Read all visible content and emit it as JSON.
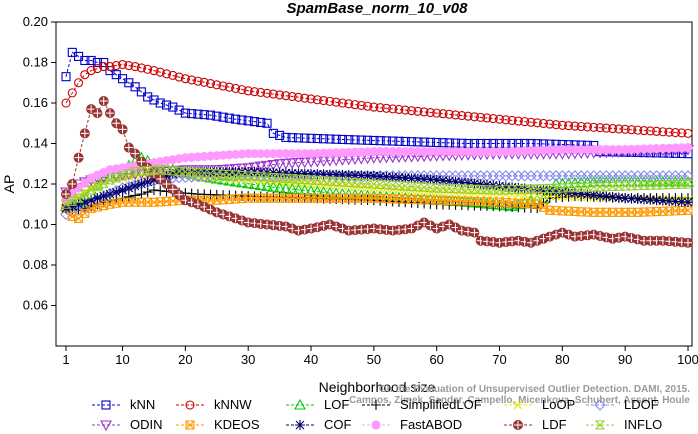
{
  "chart_data": {
    "type": "line",
    "title": "SpamBase_norm_10_v08",
    "xlabel": "Neighborhood size",
    "ylabel": "AP",
    "xlim": [
      1,
      100
    ],
    "ylim": [
      0.04,
      0.2
    ],
    "xticks": [
      1,
      10,
      20,
      30,
      40,
      50,
      60,
      70,
      80,
      90,
      100
    ],
    "yticks": [
      0.06,
      0.08,
      0.1,
      0.12,
      0.14,
      0.16,
      0.18,
      0.2
    ],
    "ytick_labels": [
      "0.06",
      "0.08",
      "0.10",
      "0.12",
      "0.14",
      "0.16",
      "0.18",
      "0.20"
    ],
    "grid": false,
    "legend_position": "bottom",
    "series": [
      {
        "name": "kNN",
        "color": "#0000cc",
        "marker": "square",
        "points": [
          [
            1,
            0.173
          ],
          [
            2,
            0.185
          ],
          [
            3,
            0.183
          ],
          [
            4,
            0.181
          ],
          [
            5,
            0.181
          ],
          [
            6,
            0.18
          ],
          [
            7,
            0.18
          ],
          [
            8,
            0.176
          ],
          [
            10,
            0.172
          ],
          [
            12,
            0.168
          ],
          [
            14,
            0.163
          ],
          [
            16,
            0.16
          ],
          [
            18,
            0.158
          ],
          [
            20,
            0.155
          ],
          [
            24,
            0.154
          ],
          [
            28,
            0.152
          ],
          [
            33,
            0.15
          ],
          [
            34,
            0.145
          ],
          [
            36,
            0.143
          ],
          [
            45,
            0.142
          ],
          [
            55,
            0.141
          ],
          [
            65,
            0.14
          ],
          [
            75,
            0.14
          ],
          [
            85,
            0.139
          ],
          [
            86,
            0.136
          ],
          [
            100,
            0.135
          ]
        ]
      },
      {
        "name": "kNNW",
        "color": "#cc0000",
        "marker": "circle",
        "points": [
          [
            1,
            0.16
          ],
          [
            2,
            0.165
          ],
          [
            3,
            0.17
          ],
          [
            4,
            0.174
          ],
          [
            5,
            0.176
          ],
          [
            6,
            0.177
          ],
          [
            7,
            0.178
          ],
          [
            8,
            0.178
          ],
          [
            10,
            0.179
          ],
          [
            12,
            0.178
          ],
          [
            15,
            0.176
          ],
          [
            20,
            0.172
          ],
          [
            25,
            0.169
          ],
          [
            30,
            0.166
          ],
          [
            35,
            0.164
          ],
          [
            40,
            0.162
          ],
          [
            50,
            0.158
          ],
          [
            60,
            0.155
          ],
          [
            70,
            0.152
          ],
          [
            80,
            0.149
          ],
          [
            90,
            0.147
          ],
          [
            100,
            0.145
          ]
        ]
      },
      {
        "name": "LOF",
        "color": "#00cc00",
        "marker": "triangle-up",
        "points": [
          [
            1,
            0.109
          ],
          [
            3,
            0.111
          ],
          [
            5,
            0.117
          ],
          [
            7,
            0.122
          ],
          [
            9,
            0.125
          ],
          [
            11,
            0.129
          ],
          [
            13,
            0.133
          ],
          [
            15,
            0.13
          ],
          [
            18,
            0.127
          ],
          [
            22,
            0.124
          ],
          [
            28,
            0.121
          ],
          [
            35,
            0.118
          ],
          [
            45,
            0.115
          ],
          [
            55,
            0.113
          ],
          [
            65,
            0.111
          ],
          [
            72,
            0.109
          ],
          [
            77,
            0.113
          ],
          [
            79,
            0.12
          ],
          [
            85,
            0.121
          ],
          [
            100,
            0.121
          ]
        ]
      },
      {
        "name": "SimplifiedLOF",
        "color": "#000000",
        "marker": "plus",
        "points": [
          [
            1,
            0.108
          ],
          [
            3,
            0.107
          ],
          [
            5,
            0.109
          ],
          [
            7,
            0.111
          ],
          [
            10,
            0.113
          ],
          [
            13,
            0.115
          ],
          [
            15,
            0.117
          ],
          [
            18,
            0.116
          ],
          [
            22,
            0.115
          ],
          [
            30,
            0.114
          ],
          [
            40,
            0.113
          ],
          [
            50,
            0.112
          ],
          [
            60,
            0.11
          ],
          [
            70,
            0.109
          ],
          [
            76,
            0.108
          ],
          [
            78,
            0.113
          ],
          [
            82,
            0.114
          ],
          [
            90,
            0.113
          ],
          [
            100,
            0.113
          ]
        ]
      },
      {
        "name": "LoOP",
        "color": "#e6e600",
        "marker": "x",
        "points": [
          [
            1,
            0.112
          ],
          [
            3,
            0.114
          ],
          [
            5,
            0.118
          ],
          [
            8,
            0.122
          ],
          [
            12,
            0.124
          ],
          [
            16,
            0.125
          ],
          [
            20,
            0.124
          ],
          [
            30,
            0.122
          ],
          [
            40,
            0.12
          ],
          [
            50,
            0.118
          ],
          [
            60,
            0.116
          ],
          [
            70,
            0.115
          ],
          [
            80,
            0.114
          ],
          [
            90,
            0.113
          ],
          [
            100,
            0.112
          ]
        ]
      },
      {
        "name": "LDOF",
        "color": "#8888ee",
        "marker": "diamond",
        "points": [
          [
            1,
            0.105
          ],
          [
            3,
            0.107
          ],
          [
            5,
            0.11
          ],
          [
            7,
            0.114
          ],
          [
            10,
            0.118
          ],
          [
            14,
            0.121
          ],
          [
            18,
            0.123
          ],
          [
            24,
            0.124
          ],
          [
            32,
            0.124
          ],
          [
            42,
            0.124
          ],
          [
            52,
            0.124
          ],
          [
            62,
            0.124
          ],
          [
            72,
            0.124
          ],
          [
            82,
            0.124
          ],
          [
            92,
            0.124
          ],
          [
            100,
            0.124
          ]
        ]
      },
      {
        "name": "ODIN",
        "color": "#9933cc",
        "marker": "triangle-down",
        "points": [
          [
            1,
            0.116
          ],
          [
            3,
            0.12
          ],
          [
            5,
            0.122
          ],
          [
            8,
            0.124
          ],
          [
            12,
            0.125
          ],
          [
            16,
            0.126
          ],
          [
            20,
            0.127
          ],
          [
            25,
            0.127
          ],
          [
            30,
            0.128
          ],
          [
            35,
            0.13
          ],
          [
            40,
            0.131
          ],
          [
            45,
            0.132
          ],
          [
            50,
            0.133
          ],
          [
            60,
            0.134
          ],
          [
            70,
            0.135
          ],
          [
            80,
            0.135
          ],
          [
            90,
            0.136
          ],
          [
            100,
            0.137
          ]
        ]
      },
      {
        "name": "KDEOS",
        "color": "#ff9900",
        "marker": "box-x",
        "points": [
          [
            1,
            0.108
          ],
          [
            2,
            0.104
          ],
          [
            3,
            0.103
          ],
          [
            5,
            0.108
          ],
          [
            8,
            0.11
          ],
          [
            10,
            0.111
          ],
          [
            15,
            0.111
          ],
          [
            20,
            0.112
          ],
          [
            25,
            0.112
          ],
          [
            30,
            0.113
          ],
          [
            40,
            0.113
          ],
          [
            50,
            0.113
          ],
          [
            60,
            0.112
          ],
          [
            70,
            0.111
          ],
          [
            76,
            0.11
          ],
          [
            78,
            0.107
          ],
          [
            85,
            0.106
          ],
          [
            92,
            0.106
          ],
          [
            100,
            0.107
          ]
        ]
      },
      {
        "name": "COF",
        "color": "#000066",
        "marker": "asterisk",
        "points": [
          [
            1,
            0.108
          ],
          [
            3,
            0.11
          ],
          [
            5,
            0.112
          ],
          [
            8,
            0.115
          ],
          [
            12,
            0.119
          ],
          [
            16,
            0.123
          ],
          [
            19,
            0.126
          ],
          [
            22,
            0.126
          ],
          [
            30,
            0.126
          ],
          [
            40,
            0.125
          ],
          [
            50,
            0.124
          ],
          [
            60,
            0.122
          ],
          [
            70,
            0.119
          ],
          [
            80,
            0.116
          ],
          [
            90,
            0.113
          ],
          [
            100,
            0.111
          ]
        ]
      },
      {
        "name": "FastABOD",
        "color": "#ff99ff",
        "marker": "circle-filled",
        "points": [
          [
            1,
            0.112
          ],
          [
            3,
            0.118
          ],
          [
            5,
            0.123
          ],
          [
            8,
            0.127
          ],
          [
            12,
            0.129
          ],
          [
            16,
            0.131
          ],
          [
            20,
            0.133
          ],
          [
            25,
            0.134
          ],
          [
            30,
            0.135
          ],
          [
            40,
            0.135
          ],
          [
            50,
            0.136
          ],
          [
            60,
            0.136
          ],
          [
            70,
            0.136
          ],
          [
            80,
            0.137
          ],
          [
            90,
            0.137
          ],
          [
            100,
            0.138
          ]
        ]
      },
      {
        "name": "LDF",
        "color": "#993333",
        "marker": "circle-plus",
        "points": [
          [
            1,
            0.115
          ],
          [
            2,
            0.12
          ],
          [
            3,
            0.133
          ],
          [
            4,
            0.145
          ],
          [
            5,
            0.157
          ],
          [
            6,
            0.155
          ],
          [
            7,
            0.161
          ],
          [
            8,
            0.155
          ],
          [
            9,
            0.15
          ],
          [
            10,
            0.147
          ],
          [
            11,
            0.138
          ],
          [
            12,
            0.135
          ],
          [
            13,
            0.131
          ],
          [
            15,
            0.125
          ],
          [
            17,
            0.12
          ],
          [
            20,
            0.112
          ],
          [
            22,
            0.11
          ],
          [
            25,
            0.106
          ],
          [
            28,
            0.103
          ],
          [
            30,
            0.101
          ],
          [
            33,
            0.1
          ],
          [
            36,
            0.099
          ],
          [
            38,
            0.097
          ],
          [
            40,
            0.098
          ],
          [
            43,
            0.1
          ],
          [
            46,
            0.097
          ],
          [
            50,
            0.098
          ],
          [
            53,
            0.097
          ],
          [
            56,
            0.098
          ],
          [
            58,
            0.101
          ],
          [
            60,
            0.098
          ],
          [
            62,
            0.1
          ],
          [
            64,
            0.097
          ],
          [
            66,
            0.096
          ],
          [
            67,
            0.092
          ],
          [
            70,
            0.091
          ],
          [
            73,
            0.092
          ],
          [
            75,
            0.091
          ],
          [
            76,
            0.092
          ],
          [
            78,
            0.094
          ],
          [
            80,
            0.096
          ],
          [
            82,
            0.094
          ],
          [
            85,
            0.095
          ],
          [
            88,
            0.093
          ],
          [
            90,
            0.094
          ],
          [
            93,
            0.092
          ],
          [
            96,
            0.092
          ],
          [
            100,
            0.091
          ]
        ]
      },
      {
        "name": "INFLO",
        "color": "#99cc33",
        "marker": "hourglass",
        "points": [
          [
            1,
            0.11
          ],
          [
            3,
            0.113
          ],
          [
            5,
            0.117
          ],
          [
            8,
            0.122
          ],
          [
            12,
            0.126
          ],
          [
            16,
            0.127
          ],
          [
            20,
            0.126
          ],
          [
            30,
            0.124
          ],
          [
            40,
            0.122
          ],
          [
            50,
            0.12
          ],
          [
            60,
            0.118
          ],
          [
            70,
            0.117
          ],
          [
            80,
            0.118
          ],
          [
            90,
            0.119
          ],
          [
            100,
            0.12
          ]
        ]
      }
    ],
    "credit_lines": [
      "On the Evaluation of Unsupervised Outlier Detection. DAMI, 2015.",
      "Campos, Zimek, Sander, Campello, Micenkova, Schubert, Assent, Houle"
    ]
  }
}
